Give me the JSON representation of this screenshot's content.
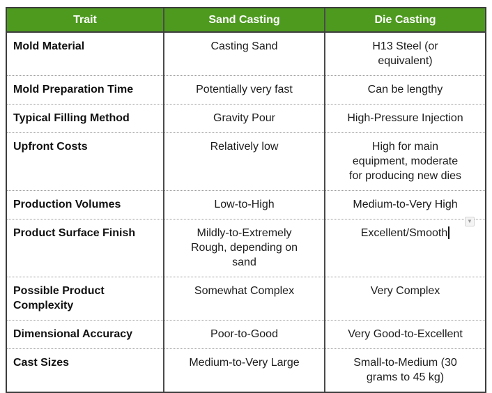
{
  "page": {
    "background": "#ffffff"
  },
  "table": {
    "accent_green": "#4d9a1f",
    "header_text_color": "#ffffff",
    "columns": [
      "Trait",
      "Sand Casting",
      "Die Casting"
    ],
    "rows": [
      {
        "trait": "Mold Material",
        "sand": "Casting Sand",
        "die": "H13 Steel (or\nequivalent)",
        "die_has_cursor": false
      },
      {
        "trait": "Mold Preparation Time",
        "sand": "Potentially very fast",
        "die": "Can be lengthy",
        "die_has_cursor": false
      },
      {
        "trait": "Typical Filling Method",
        "sand": "Gravity Pour",
        "die": "High-Pressure Injection",
        "die_has_cursor": false
      },
      {
        "trait": "Upfront Costs",
        "sand": "Relatively low",
        "die": "High for main\nequipment, moderate\nfor producing new dies",
        "die_has_cursor": false
      },
      {
        "trait": "Production Volumes",
        "sand": "Low-to-High",
        "die": "Medium-to-Very High",
        "die_has_cursor": false
      },
      {
        "trait": "Product Surface Finish",
        "sand": "Mildly-to-Extremely\nRough, depending on\nsand",
        "die": "Excellent/Smooth",
        "die_has_cursor": true
      },
      {
        "trait": "Possible Product\nComplexity",
        "sand": "Somewhat Complex",
        "die": "Very Complex",
        "die_has_cursor": false
      },
      {
        "trait": "Dimensional Accuracy",
        "sand": "Poor-to-Good",
        "die": "Very Good-to-Excellent",
        "die_has_cursor": false
      },
      {
        "trait": "Cast Sizes",
        "sand": "Medium-to-Very Large",
        "die": "Small-to-Medium (30\ngrams to 45 kg)",
        "die_has_cursor": false
      }
    ]
  },
  "widgets": {
    "dropdown_arrow": "▼"
  }
}
